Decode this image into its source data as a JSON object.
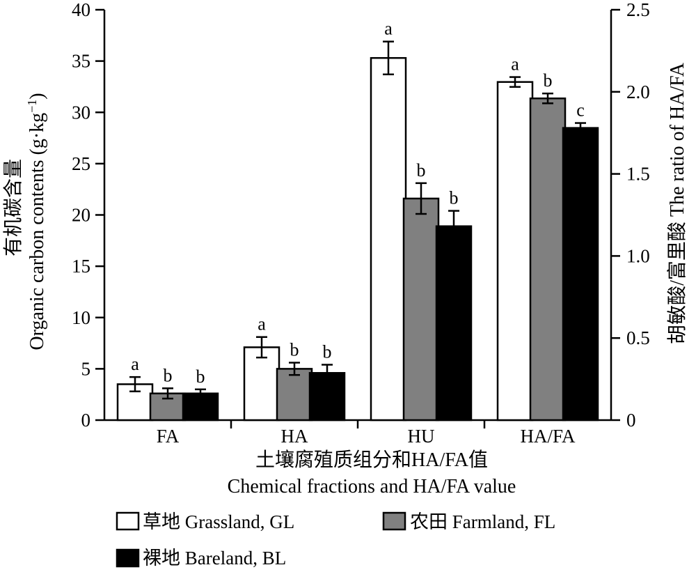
{
  "chart_data": {
    "type": "bar",
    "categories": [
      "FA",
      "HA",
      "HU",
      "HA/FA"
    ],
    "series": [
      {
        "name": "草地 Grassland, GL",
        "color": "#ffffff",
        "values": [
          3.5,
          7.1,
          35.3,
          2.06
        ],
        "errors": [
          0.7,
          1.0,
          1.6,
          0.03
        ],
        "labels": [
          "a",
          "a",
          "a",
          "a"
        ]
      },
      {
        "name": "农田 Farmland, FL",
        "color": "#808080",
        "values": [
          2.6,
          5.0,
          21.6,
          1.96
        ],
        "errors": [
          0.5,
          0.6,
          1.5,
          0.03
        ],
        "labels": [
          "b",
          "b",
          "b",
          "b"
        ]
      },
      {
        "name": "裸地 Bareland, BL",
        "color": "#000000",
        "values": [
          2.6,
          4.6,
          18.9,
          1.78
        ],
        "errors": [
          0.4,
          0.8,
          1.5,
          0.03
        ],
        "labels": [
          "b",
          "b",
          "b",
          "c"
        ]
      }
    ],
    "secondary_axis_categories": [
      "HA/FA"
    ],
    "y_left": {
      "label_line1": "有机碳含量",
      "label_line2_text": "Organic carbon contents (g·kg",
      "label_line2_sup": "−1",
      "label_line2_end": ")",
      "ylim": [
        0,
        40
      ],
      "ticks": [
        "0",
        "5",
        "10",
        "15",
        "20",
        "25",
        "30",
        "35",
        "40"
      ]
    },
    "y_right": {
      "label": "胡敏酸/富里酸 The ratio of HA/FA",
      "ylim": [
        0,
        2.5
      ],
      "ticks": [
        "0",
        "0.5",
        "1.0",
        "1.5",
        "2.0",
        "2.5"
      ]
    },
    "xlabel_line1": "土壤腐殖质组分和HA/FA值",
    "xlabel_line2": "Chemical fractions and HA/FA value",
    "grid": false,
    "legend_position": "bottom"
  }
}
